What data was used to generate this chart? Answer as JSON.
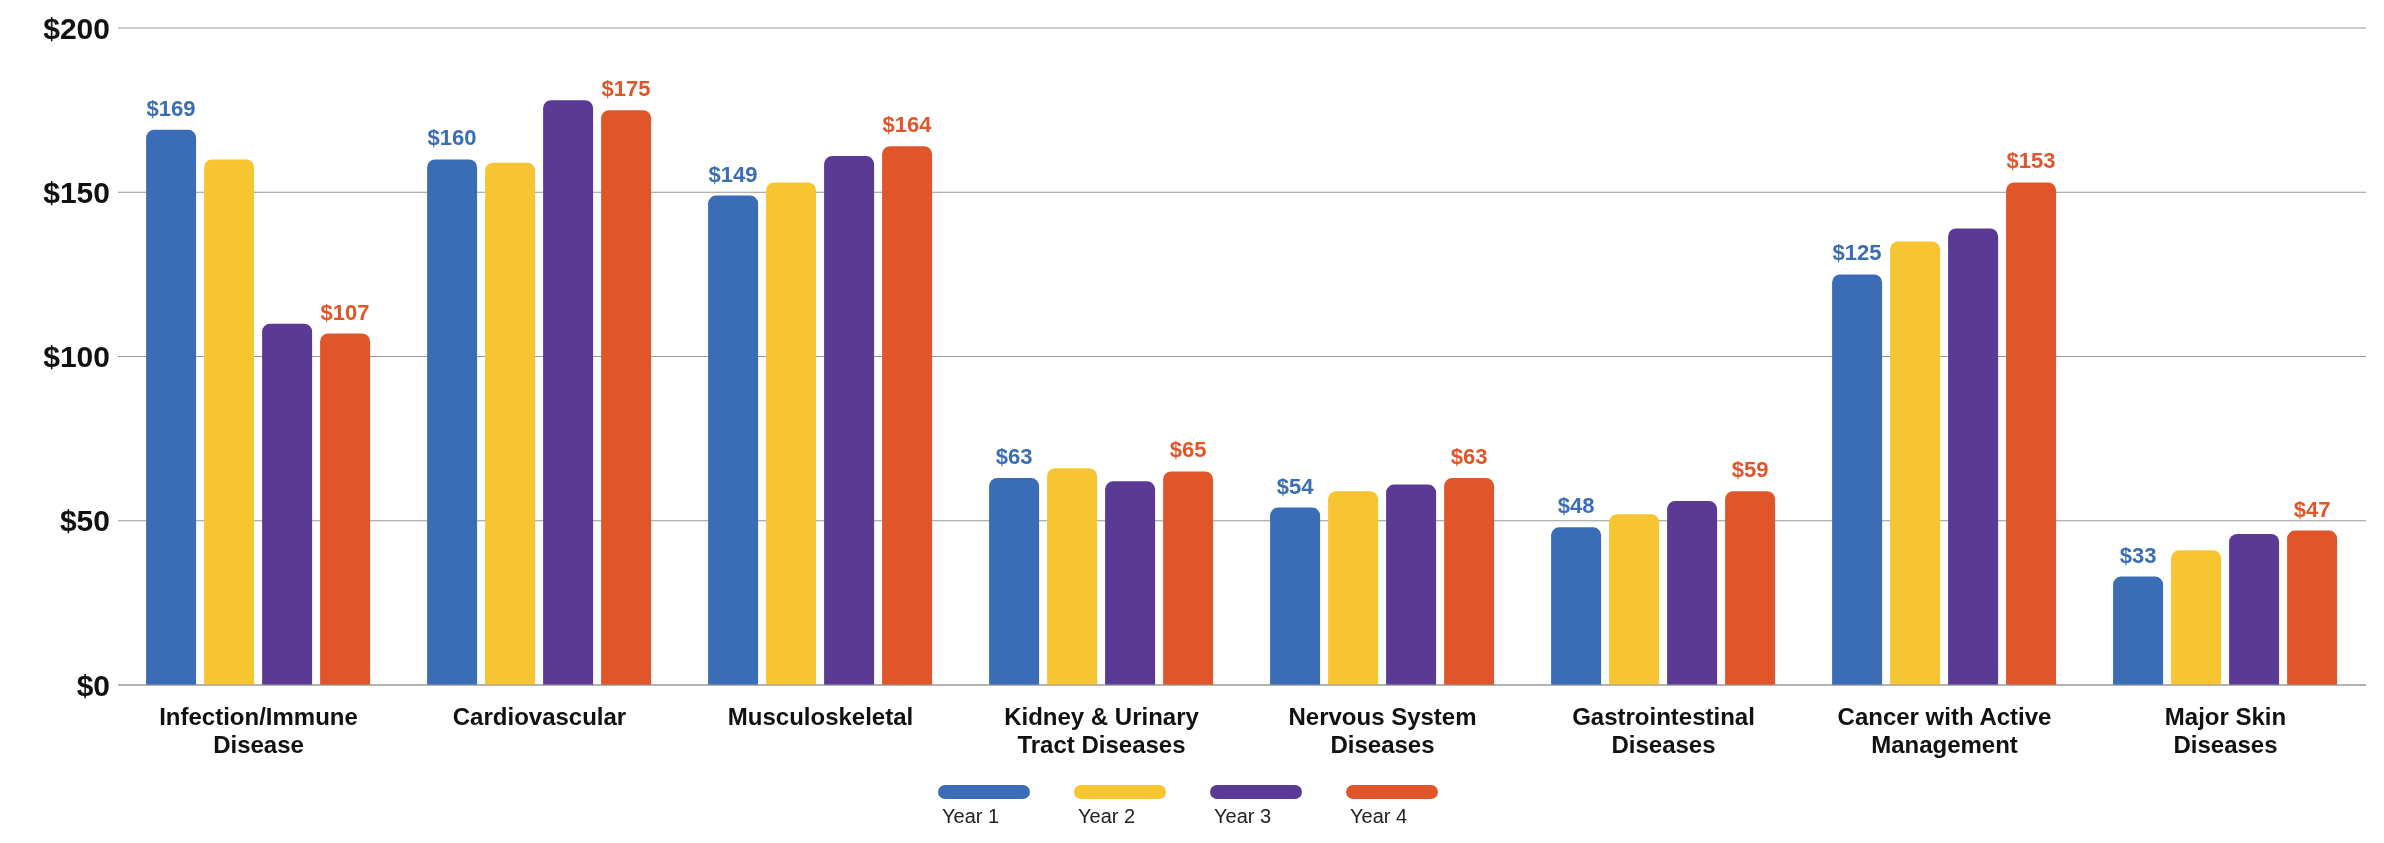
{
  "chart_data": {
    "type": "bar",
    "categories": [
      "Infection/Immune Disease",
      "Cardiovascular",
      "Musculoskeletal",
      "Kidney & Urinary Tract Diseases",
      "Nervous System Diseases",
      "Gastrointestinal Diseases",
      "Cancer with Active Management",
      "Major Skin Diseases"
    ],
    "series": [
      {
        "name": "Year 1",
        "color": "#3a6db5",
        "values": [
          169,
          160,
          149,
          63,
          54,
          48,
          125,
          33
        ],
        "value_labels": [
          "$169",
          "$160",
          "$149",
          "$63",
          "$54",
          "$48",
          "$125",
          "$33"
        ]
      },
      {
        "name": "Year 2",
        "color": "#f7c531",
        "values": [
          160,
          159,
          153,
          66,
          59,
          52,
          135,
          41
        ]
      },
      {
        "name": "Year 3",
        "color": "#5b3a96",
        "values": [
          110,
          178,
          161,
          62,
          61,
          56,
          139,
          46
        ]
      },
      {
        "name": "Year 4",
        "color": "#e0562a",
        "values": [
          107,
          175,
          164,
          65,
          63,
          59,
          153,
          47
        ],
        "value_labels": [
          "$107",
          "$175",
          "$164",
          "$65",
          "$63",
          "$59",
          "$153",
          "$47"
        ]
      }
    ],
    "ylim": [
      0,
      200
    ],
    "yticks": [
      {
        "value": 0,
        "label": "$0"
      },
      {
        "value": 50,
        "label": "$50"
      },
      {
        "value": 100,
        "label": "$100"
      },
      {
        "value": 150,
        "label": "$150"
      },
      {
        "value": 200,
        "label": "$200"
      }
    ],
    "grid": "y",
    "legend": "bottom"
  }
}
